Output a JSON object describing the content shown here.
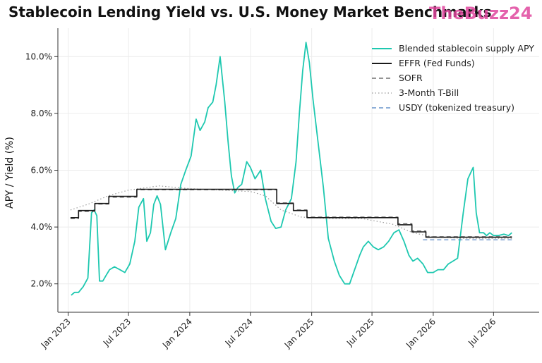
{
  "chart_data": {
    "type": "line",
    "title": "Stablecoin Lending Yield vs. U.S. Money Market Benchmarks",
    "ylabel": "APY / Yield (%)",
    "xlabel": "",
    "ylim": [
      1.0,
      11.0
    ],
    "xlim": [
      "2022-12-01",
      "2026-11-15"
    ],
    "y_ticks": [
      2.0,
      4.0,
      6.0,
      8.0,
      10.0
    ],
    "y_tick_labels": [
      "2.0%",
      "4.0%",
      "6.0%",
      "8.0%",
      "10.0%"
    ],
    "x_ticks": [
      "2023-01-01",
      "2023-07-01",
      "2024-01-01",
      "2024-07-01",
      "2025-01-01",
      "2025-07-01",
      "2026-01-01",
      "2026-07-01"
    ],
    "x_tick_labels": [
      "Jan 2023",
      "Jul 2023",
      "Jan 2024",
      "Jul 2024",
      "Jan 2025",
      "Jul 2025",
      "Jan 2026",
      "Jul 2026"
    ],
    "grid": true,
    "legend_position": "top-right",
    "series": [
      {
        "name": "Blended stablecoin supply APY",
        "color": "#1ec8b0",
        "style": "solid",
        "x": [
          "2023-01-10",
          "2023-01-20",
          "2023-02-01",
          "2023-02-15",
          "2023-03-01",
          "2023-03-12",
          "2023-03-20",
          "2023-03-28",
          "2023-04-05",
          "2023-04-15",
          "2023-04-25",
          "2023-05-05",
          "2023-05-20",
          "2023-06-05",
          "2023-06-20",
          "2023-07-05",
          "2023-07-20",
          "2023-08-01",
          "2023-08-15",
          "2023-08-25",
          "2023-09-05",
          "2023-09-15",
          "2023-09-25",
          "2023-10-05",
          "2023-10-20",
          "2023-11-05",
          "2023-11-20",
          "2023-12-05",
          "2023-12-20",
          "2024-01-05",
          "2024-01-20",
          "2024-02-01",
          "2024-02-15",
          "2024-02-25",
          "2024-03-10",
          "2024-03-20",
          "2024-04-01",
          "2024-04-15",
          "2024-04-25",
          "2024-05-05",
          "2024-05-15",
          "2024-05-25",
          "2024-06-05",
          "2024-06-20",
          "2024-07-01",
          "2024-07-15",
          "2024-08-01",
          "2024-08-15",
          "2024-09-01",
          "2024-09-15",
          "2024-10-01",
          "2024-10-15",
          "2024-11-01",
          "2024-11-15",
          "2024-11-25",
          "2024-12-05",
          "2024-12-15",
          "2024-12-25",
          "2025-01-05",
          "2025-01-20",
          "2025-02-05",
          "2025-02-20",
          "2025-03-10",
          "2025-03-25",
          "2025-04-10",
          "2025-04-25",
          "2025-05-10",
          "2025-05-25",
          "2025-06-05",
          "2025-06-20",
          "2025-07-05",
          "2025-07-20",
          "2025-08-05",
          "2025-08-20",
          "2025-09-05",
          "2025-09-20",
          "2025-10-05",
          "2025-10-20",
          "2025-11-01",
          "2025-11-15",
          "2025-12-01",
          "2025-12-15",
          "2026-01-01",
          "2026-01-15",
          "2026-02-01",
          "2026-02-15",
          "2026-03-01",
          "2026-03-15",
          "2026-04-01",
          "2026-04-15",
          "2026-05-01",
          "2026-05-10",
          "2026-05-20",
          "2026-06-01",
          "2026-06-10",
          "2026-06-20",
          "2026-07-01",
          "2026-07-15",
          "2026-08-01",
          "2026-08-15",
          "2026-08-25"
        ],
        "y": [
          1.6,
          1.7,
          1.7,
          1.9,
          2.2,
          4.5,
          4.6,
          4.4,
          2.1,
          2.1,
          2.3,
          2.5,
          2.6,
          2.5,
          2.4,
          2.7,
          3.5,
          4.7,
          5.0,
          3.5,
          3.8,
          4.8,
          5.1,
          4.8,
          3.2,
          3.8,
          4.3,
          5.5,
          6.0,
          6.5,
          7.8,
          7.4,
          7.7,
          8.2,
          8.4,
          9.0,
          10.0,
          8.4,
          7.0,
          5.8,
          5.2,
          5.4,
          5.5,
          6.3,
          6.1,
          5.7,
          6.0,
          5.0,
          4.2,
          3.95,
          4.0,
          4.6,
          5.0,
          6.3,
          8.0,
          9.5,
          10.5,
          9.8,
          8.5,
          7.0,
          5.4,
          3.6,
          2.8,
          2.3,
          2.0,
          2.0,
          2.5,
          3.0,
          3.3,
          3.5,
          3.3,
          3.2,
          3.3,
          3.5,
          3.8,
          3.9,
          3.5,
          3.0,
          2.8,
          2.9,
          2.7,
          2.4,
          2.4,
          2.5,
          2.5,
          2.7,
          2.8,
          2.9,
          4.5,
          5.7,
          6.1,
          4.5,
          3.8,
          3.8,
          3.7,
          3.8,
          3.7,
          3.7,
          3.75,
          3.7,
          3.8
        ]
      },
      {
        "name": "EFFR (Fed Funds)",
        "color": "#1a1a1a",
        "style": "solid",
        "x": [
          "2023-01-08",
          "2023-02-01",
          "2023-03-22",
          "2023-05-03",
          "2023-07-26",
          "2024-09-18",
          "2024-11-07",
          "2024-12-18",
          "2025-09-17",
          "2025-10-29",
          "2025-12-10",
          "2026-08-25"
        ],
        "y": [
          4.33,
          4.58,
          4.83,
          5.08,
          5.33,
          4.83,
          4.58,
          4.33,
          4.08,
          3.83,
          3.64,
          3.64
        ]
      },
      {
        "name": "SOFR",
        "color": "#555555",
        "style": "dashed",
        "x": [
          "2023-01-08",
          "2023-02-01",
          "2023-03-22",
          "2023-05-03",
          "2023-07-26",
          "2024-09-18",
          "2024-11-07",
          "2024-12-18",
          "2025-09-17",
          "2025-10-29",
          "2025-12-10",
          "2026-08-25"
        ],
        "y": [
          4.3,
          4.55,
          4.81,
          5.05,
          5.31,
          4.85,
          4.6,
          4.35,
          4.12,
          3.86,
          3.66,
          3.66
        ]
      },
      {
        "name": "3-Month T-Bill",
        "color": "#999999",
        "style": "dotted",
        "x": [
          "2023-01-08",
          "2023-03-01",
          "2023-05-01",
          "2023-07-01",
          "2023-10-01",
          "2024-01-01",
          "2024-04-01",
          "2024-07-01",
          "2024-08-15",
          "2024-10-01",
          "2024-12-01",
          "2025-03-01",
          "2025-06-01",
          "2025-09-01",
          "2025-11-01",
          "2026-01-01",
          "2026-04-01",
          "2026-08-25"
        ],
        "y": [
          4.6,
          4.8,
          5.1,
          5.3,
          5.45,
          5.35,
          5.3,
          5.25,
          5.1,
          4.6,
          4.35,
          4.3,
          4.3,
          4.1,
          3.8,
          3.65,
          3.6,
          3.6
        ]
      },
      {
        "name": "USDY (tokenized treasury)",
        "color": "#4a7fc0",
        "style": "dashed",
        "x": [
          "2025-12-01",
          "2026-08-25"
        ],
        "y": [
          3.55,
          3.55
        ]
      }
    ]
  },
  "watermark": "TheBuzz24"
}
